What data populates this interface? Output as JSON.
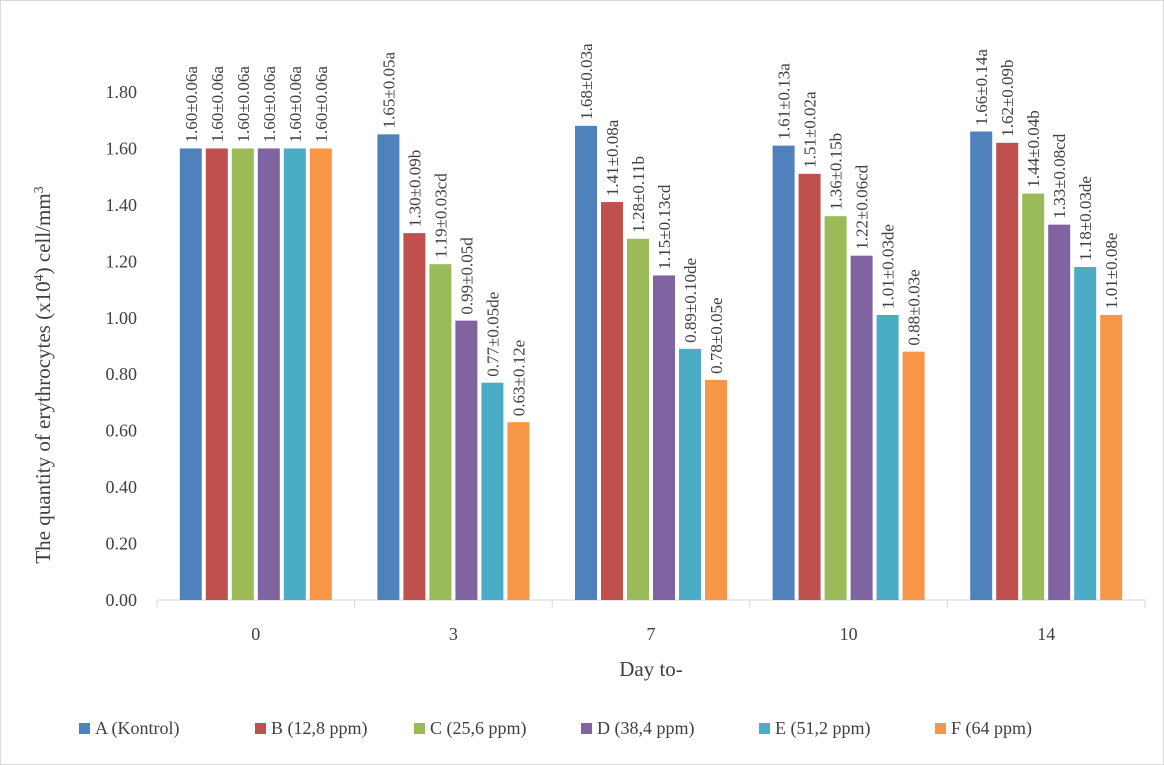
{
  "chart_data": {
    "type": "bar",
    "title": "",
    "xlabel": "Day to-",
    "ylabel_main": "The quantity of erythrocytes (x10",
    "ylabel_sup": "4",
    "ylabel_mid": ") cell/mm",
    "ylabel_sup2": "3",
    "ylim": [
      0,
      1.8
    ],
    "yticks": [
      "0.00",
      "0.20",
      "0.40",
      "0.60",
      "0.80",
      "1.00",
      "1.20",
      "1.40",
      "1.60",
      "1.80"
    ],
    "grid": false,
    "legend_position": "bottom",
    "categories": [
      "0",
      "3",
      "7",
      "10",
      "14"
    ],
    "series": [
      {
        "name": "A (Kontrol)",
        "color": "#4f81bd",
        "values": [
          1.6,
          1.65,
          1.68,
          1.61,
          1.66
        ],
        "labels": [
          "1.60±0.06a",
          "1.65±0.05a",
          "1.68±0.03a",
          "1.61±0.13a",
          "1.66±0.14a"
        ]
      },
      {
        "name": "B (12,8 ppm)",
        "color": "#c0504d",
        "values": [
          1.6,
          1.3,
          1.41,
          1.51,
          1.62
        ],
        "labels": [
          "1.60±0.06a",
          "1.30±0.09b",
          "1.41±0.08a",
          "1.51±0.02a",
          "1.62±0.09b"
        ]
      },
      {
        "name": "C (25,6 ppm)",
        "color": "#9bbb59",
        "values": [
          1.6,
          1.19,
          1.28,
          1.36,
          1.44
        ],
        "labels": [
          "1.60±0.06a",
          "1.19±0.03cd",
          "1.28±0.11b",
          "1.36±0.15b",
          "1.44±0.04b"
        ]
      },
      {
        "name": "D (38,4 ppm)",
        "color": "#8064a2",
        "values": [
          1.6,
          0.99,
          1.15,
          1.22,
          1.33
        ],
        "labels": [
          "1.60±0.06a",
          "0.99±0.05d",
          "1.15±0.13cd",
          "1.22±0.06cd",
          "1.33±0.08cd"
        ]
      },
      {
        "name": "E (51,2 ppm)",
        "color": "#4bacc6",
        "values": [
          1.6,
          0.77,
          0.89,
          1.01,
          1.18
        ],
        "labels": [
          "1.60±0.06a",
          "0.77±0.05de",
          "0.89±0.10de",
          "1.01±0.03de",
          "1.18±0.03de"
        ]
      },
      {
        "name": "F (64 ppm)",
        "color": "#f79646",
        "values": [
          1.6,
          0.63,
          0.78,
          0.88,
          1.01
        ],
        "labels": [
          "1.60±0.06a",
          "0.63±0.12e",
          "0.78±0.05e",
          "0.88±0.03e",
          "1.01±0.08e"
        ]
      }
    ]
  }
}
